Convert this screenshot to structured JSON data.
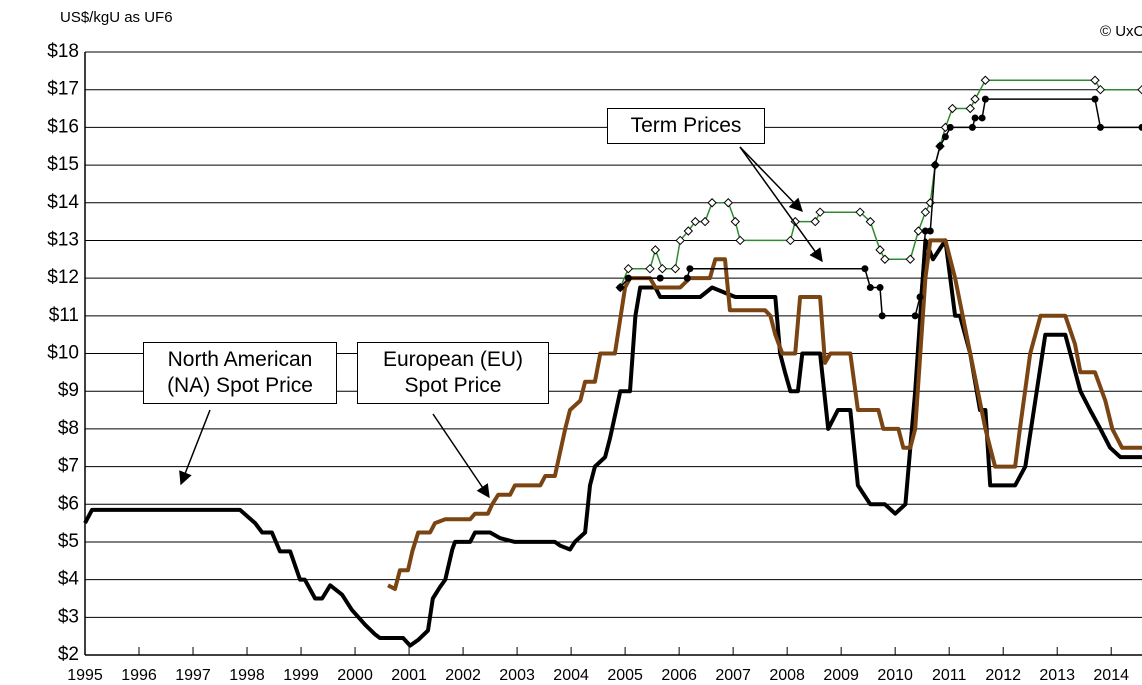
{
  "chart_data": {
    "type": "line",
    "y_axis_label": "US$/kgU as UF6",
    "source": "© UxC",
    "annotations": [
      "Term Prices"
    ],
    "xlim": [
      1995,
      2014.57
    ],
    "xticks": [
      1995,
      1996,
      1997,
      1998,
      1999,
      2000,
      2001,
      2002,
      2003,
      2004,
      2005,
      2006,
      2007,
      2008,
      2009,
      2010,
      2011,
      2012,
      2013,
      2014
    ],
    "ylim": [
      2,
      18
    ],
    "yticks": [
      {
        "value": 2,
        "label": "$2"
      },
      {
        "value": 3,
        "label": "$3"
      },
      {
        "value": 4,
        "label": "$4"
      },
      {
        "value": 5,
        "label": "$5"
      },
      {
        "value": 6,
        "label": "$6"
      },
      {
        "value": 7,
        "label": "$7"
      },
      {
        "value": 8,
        "label": "$8"
      },
      {
        "value": 9,
        "label": "$9"
      },
      {
        "value": 10,
        "label": "$10"
      },
      {
        "value": 11,
        "label": "$11"
      },
      {
        "value": 12,
        "label": "$12"
      },
      {
        "value": 13,
        "label": "$13"
      },
      {
        "value": 14,
        "label": "$14"
      },
      {
        "value": 15,
        "label": "$15"
      },
      {
        "value": 16,
        "label": "$16"
      },
      {
        "value": 17,
        "label": "$17"
      },
      {
        "value": 18,
        "label": "$18"
      }
    ],
    "grid": true,
    "series": [
      {
        "name": "North American (NA) Spot Price",
        "color": "#000000",
        "width": 4,
        "marker": "none",
        "x": [
          1995.0,
          1995.13,
          1997.87,
          1998.15,
          1998.28,
          1998.46,
          1998.61,
          1998.8,
          1998.98,
          1999.07,
          1999.26,
          1999.39,
          1999.54,
          1999.76,
          1999.94,
          2000.19,
          2000.37,
          2000.46,
          2000.89,
          2001.02,
          2001.17,
          2001.35,
          2001.44,
          2001.57,
          2001.67,
          2001.8,
          2001.85,
          2002.13,
          2002.22,
          2002.5,
          2002.69,
          2002.96,
          2003.7,
          2003.8,
          2003.98,
          2004.07,
          2004.26,
          2004.35,
          2004.44,
          2004.63,
          2004.72,
          2004.91,
          2005.09,
          2005.19,
          2005.28,
          2005.56,
          2005.65,
          2006.39,
          2006.61,
          2007.04,
          2007.78,
          2007.87,
          2007.96,
          2008.06,
          2008.2,
          2008.28,
          2008.61,
          2008.76,
          2008.94,
          2009.17,
          2009.31,
          2009.54,
          2009.81,
          2010.0,
          2010.19,
          2010.37,
          2010.56,
          2010.7,
          2010.93,
          2011.11,
          2011.2,
          2011.39,
          2011.57,
          2011.67,
          2011.76,
          2012.22,
          2012.41,
          2012.78,
          2013.15,
          2013.43,
          2013.61,
          2013.8,
          2013.98,
          2014.17,
          2014.57
        ],
        "values": [
          5.5,
          5.85,
          5.85,
          5.5,
          5.25,
          5.25,
          4.75,
          4.75,
          4.0,
          4.0,
          3.5,
          3.5,
          3.85,
          3.6,
          3.2,
          2.8,
          2.55,
          2.45,
          2.45,
          2.25,
          2.4,
          2.65,
          3.5,
          3.8,
          4.0,
          4.8,
          5.0,
          5.0,
          5.25,
          5.25,
          5.1,
          5.0,
          5.0,
          4.9,
          4.8,
          5.0,
          5.25,
          6.5,
          7.0,
          7.25,
          7.75,
          9.0,
          9.0,
          11.0,
          11.75,
          11.75,
          11.5,
          11.5,
          11.75,
          11.5,
          11.5,
          10.0,
          9.5,
          9.0,
          9.0,
          10.0,
          10.0,
          8.0,
          8.5,
          8.5,
          6.5,
          6.0,
          6.0,
          5.75,
          6.0,
          9.0,
          13.0,
          12.5,
          13.0,
          11.0,
          11.0,
          10.0,
          8.5,
          8.5,
          6.5,
          6.5,
          7.0,
          10.5,
          10.5,
          9.0,
          8.5,
          8.0,
          7.5,
          7.25,
          7.25
        ]
      },
      {
        "name": "European (EU) Spot Price",
        "color": "#7a4513",
        "width": 4,
        "marker": "none",
        "x": [
          2000.61,
          2000.74,
          2000.83,
          2000.98,
          2001.06,
          2001.17,
          2001.39,
          2001.48,
          2001.67,
          2002.13,
          2002.22,
          2002.46,
          2002.54,
          2002.65,
          2002.87,
          2002.96,
          2003.43,
          2003.52,
          2003.7,
          2003.89,
          2003.98,
          2004.17,
          2004.26,
          2004.44,
          2004.54,
          2004.81,
          2005.0,
          2005.09,
          2005.46,
          2005.56,
          2006.02,
          2006.2,
          2006.57,
          2006.67,
          2006.85,
          2006.94,
          2007.59,
          2007.69,
          2007.78,
          2007.91,
          2008.15,
          2008.24,
          2008.61,
          2008.7,
          2008.8,
          2009.17,
          2009.31,
          2009.69,
          2009.78,
          2010.06,
          2010.15,
          2010.28,
          2010.37,
          2010.56,
          2010.65,
          2010.93,
          2011.11,
          2011.67,
          2011.76,
          2011.85,
          2012.22,
          2012.31,
          2012.5,
          2012.69,
          2013.15,
          2013.33,
          2013.43,
          2013.7,
          2013.89,
          2014.02,
          2014.2,
          2014.57
        ],
        "values": [
          3.85,
          3.75,
          4.25,
          4.25,
          4.75,
          5.25,
          5.25,
          5.5,
          5.6,
          5.6,
          5.75,
          5.75,
          6.0,
          6.25,
          6.25,
          6.5,
          6.5,
          6.75,
          6.75,
          8.0,
          8.5,
          8.75,
          9.25,
          9.25,
          10.0,
          10.0,
          11.75,
          12.0,
          12.0,
          11.75,
          11.75,
          12.0,
          12.0,
          12.5,
          12.5,
          11.15,
          11.15,
          11.0,
          10.5,
          10.0,
          10.0,
          11.5,
          11.5,
          9.75,
          10.0,
          10.0,
          8.5,
          8.5,
          8.0,
          8.0,
          7.5,
          7.5,
          8.0,
          12.0,
          13.0,
          13.0,
          12.0,
          8.0,
          7.5,
          7.0,
          7.0,
          8.0,
          10.0,
          11.0,
          11.0,
          10.25,
          9.5,
          9.5,
          8.75,
          8.0,
          7.5,
          7.5
        ]
      },
      {
        "color": "#2e8b2e",
        "width": 1.5,
        "marker": "diamond",
        "x": [
          2004.91,
          2005.06,
          2005.46,
          2005.56,
          2005.69,
          2005.93,
          2006.02,
          2006.17,
          2006.3,
          2006.48,
          2006.61,
          2006.91,
          2007.04,
          2007.13,
          2008.06,
          2008.15,
          2008.52,
          2008.61,
          2009.35,
          2009.54,
          2009.72,
          2009.81,
          2010.28,
          2010.43,
          2010.56,
          2010.65,
          2010.74,
          2010.83,
          2010.93,
          2011.06,
          2011.39,
          2011.48,
          2011.67,
          2013.7,
          2013.8,
          2014.57
        ],
        "values": [
          11.75,
          12.25,
          12.25,
          12.75,
          12.25,
          12.25,
          13.0,
          13.25,
          13.5,
          13.5,
          14.0,
          14.0,
          13.5,
          13.0,
          13.0,
          13.5,
          13.5,
          13.75,
          13.75,
          13.5,
          12.75,
          12.5,
          12.5,
          13.25,
          13.75,
          14.0,
          15.0,
          15.5,
          16.0,
          16.5,
          16.5,
          16.75,
          17.25,
          17.25,
          17.0,
          17.0
        ]
      },
      {
        "color": "#000000",
        "width": 1.5,
        "marker": "circle",
        "x": [
          2004.91,
          2005.06,
          2005.65,
          2006.15,
          2006.2,
          2009.44,
          2009.54,
          2009.72,
          2009.76,
          2010.37,
          2010.46,
          2010.56,
          2010.65,
          2010.74,
          2010.83,
          2010.93,
          2011.02,
          2011.43,
          2011.48,
          2011.61,
          2011.67,
          2013.7,
          2013.8,
          2014.57
        ],
        "values": [
          11.75,
          12.0,
          12.0,
          12.0,
          12.25,
          12.25,
          11.75,
          11.75,
          11.0,
          11.0,
          11.5,
          13.25,
          13.25,
          15.0,
          15.5,
          15.75,
          16.0,
          16.0,
          16.25,
          16.25,
          16.75,
          16.75,
          16.0,
          16.0
        ]
      }
    ]
  }
}
